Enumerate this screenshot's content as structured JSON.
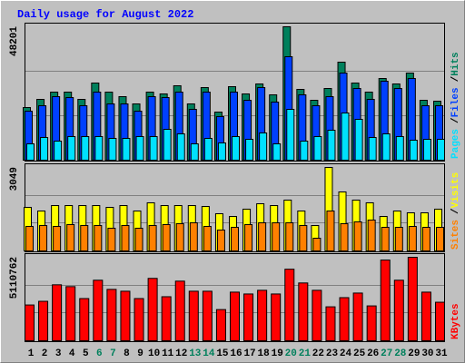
{
  "title": "Daily usage for August 2022",
  "categories": [
    "1",
    "2",
    "3",
    "4",
    "5",
    "6",
    "7",
    "8",
    "9",
    "10",
    "11",
    "12",
    "13",
    "14",
    "15",
    "16",
    "17",
    "18",
    "19",
    "20",
    "21",
    "22",
    "23",
    "24",
    "25",
    "26",
    "27",
    "28",
    "29",
    "30",
    "31"
  ],
  "weekend": [
    false,
    false,
    false,
    false,
    false,
    true,
    true,
    false,
    false,
    false,
    false,
    false,
    true,
    true,
    false,
    false,
    false,
    false,
    false,
    true,
    true,
    false,
    false,
    false,
    false,
    false,
    true,
    true,
    false,
    false,
    false
  ],
  "weekday_color": "#000000",
  "weekend_color": "#00805c",
  "chart_data": [
    {
      "type": "bar",
      "ylim": [
        0,
        48201
      ],
      "yticks": [
        48201
      ],
      "grid_divisions": 3,
      "legend_separator": "/",
      "series": [
        {
          "name": "Hits",
          "color": "#00805c",
          "values": [
            19018,
            21969,
            24592,
            24592,
            21969,
            27871,
            24592,
            22953,
            20330,
            24592,
            23936,
            26888,
            20330,
            26232,
            17379,
            26560,
            23936,
            27543,
            23609,
            48201,
            25576,
            21641,
            25904,
            35413,
            27871,
            24592,
            29511,
            27543,
            31478,
            21641,
            21313
          ]
        },
        {
          "name": "Files",
          "color": "#0040ff",
          "values": [
            17707,
            19674,
            22953,
            22625,
            19674,
            24592,
            20330,
            20330,
            17707,
            22953,
            22625,
            24592,
            18363,
            24592,
            15739,
            24592,
            21641,
            26232,
            20986,
            37381,
            23609,
            19674,
            22953,
            31478,
            25904,
            21969,
            28527,
            25904,
            29511,
            19674,
            19674
          ]
        },
        {
          "name": "Pages",
          "color": "#00e0ff",
          "values": [
            5902,
            8197,
            6886,
            8525,
            8525,
            8525,
            7870,
            7870,
            8525,
            8525,
            11149,
            9509,
            5902,
            7870,
            6230,
            8525,
            7542,
            9837,
            5902,
            18363,
            6886,
            8525,
            10821,
            17051,
            14756,
            8197,
            9509,
            8525,
            7214,
            7542,
            7542
          ]
        }
      ]
    },
    {
      "type": "bar",
      "ylim": [
        0,
        3049
      ],
      "yticks": [
        3049
      ],
      "grid_divisions": 3,
      "legend_separator": "/",
      "series": [
        {
          "name": "Visits",
          "color": "#ffff00",
          "values": [
            1591,
            1458,
            1657,
            1657,
            1657,
            1657,
            1591,
            1657,
            1458,
            1757,
            1657,
            1657,
            1657,
            1624,
            1359,
            1259,
            1525,
            1723,
            1657,
            1856,
            1458,
            928,
            3049,
            2154,
            1856,
            1757,
            1259,
            1458,
            1392,
            1392,
            1525
          ]
        },
        {
          "name": "Sites",
          "color": "#ff8000",
          "values": [
            895,
            928,
            895,
            961,
            928,
            928,
            829,
            928,
            829,
            928,
            961,
            994,
            1027,
            895,
            762,
            862,
            961,
            1027,
            1027,
            1027,
            928,
            464,
            1458,
            994,
            1061,
            1127,
            862,
            862,
            895,
            862,
            862
          ]
        }
      ]
    },
    {
      "type": "bar",
      "ylim": [
        0,
        5110762
      ],
      "yticks": [
        5110762
      ],
      "grid_divisions": 3,
      "series": [
        {
          "name": "KBytes",
          "color": "#ff0000",
          "values": [
            2190327,
            2414920,
            3425805,
            3313508,
            2583407,
            3706546,
            3144962,
            3032640,
            2583407,
            3818864,
            2695723,
            3650387,
            3032640,
            3032640,
            1909548,
            2976503,
            2864189,
            3088803,
            2864189,
            4380653,
            3538081,
            3088803,
            2077968,
            2639568,
            2920344,
            2134128,
            4942258,
            3706546,
            5110762,
            2976503,
            2358772
          ]
        }
      ]
    }
  ]
}
